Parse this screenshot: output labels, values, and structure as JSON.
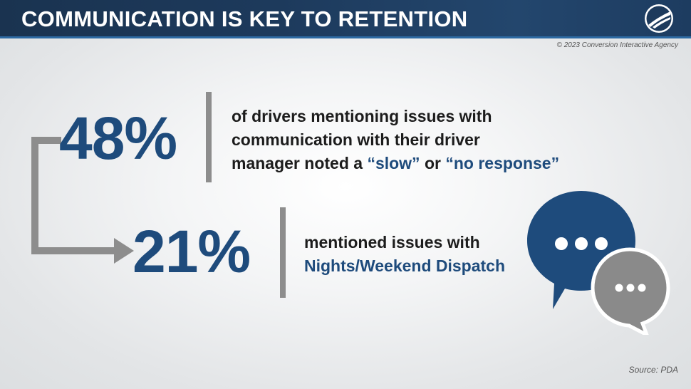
{
  "header": {
    "title": "COMMUNICATION IS KEY TO RETENTION",
    "logo_icon": "highway-road-icon"
  },
  "copyright": "© 2023 Conversion Interactive Agency",
  "stat1": {
    "value": "48%",
    "text_line1": "of drivers mentioning issues with",
    "text_line2": "communication with their driver",
    "text_line3_pre": "manager noted a ",
    "highlight1": "“slow”",
    "text_line3_mid": " or ",
    "highlight2": "“no response”"
  },
  "stat2": {
    "value": "21%",
    "text_line1": "mentioned issues with",
    "highlight": "Nights/Weekend Dispatch"
  },
  "source": "Source: PDA",
  "icons": {
    "connector": "elbow-arrow-icon",
    "chat": "chat-bubbles-icon"
  },
  "colors": {
    "accent": "#1e4b7c",
    "header": "#1d3a5c",
    "gray": "#8d8d8d"
  }
}
